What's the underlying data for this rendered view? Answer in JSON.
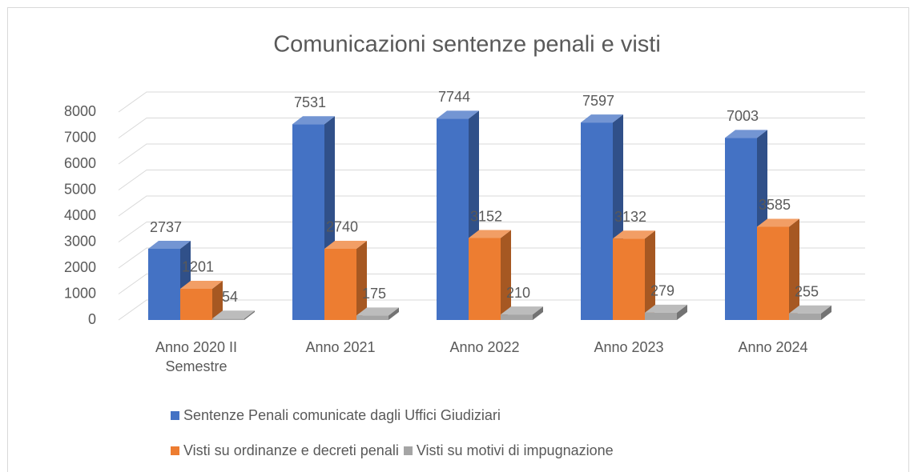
{
  "chart_data": {
    "type": "bar3d",
    "title": "Comunicazioni sentenze penali e visti",
    "categories": [
      "Anno 2020 II Semestre",
      "Anno 2021",
      "Anno 2022",
      "Anno 2023",
      "Anno 2024"
    ],
    "series": [
      {
        "name": "Sentenze Penali comunicate dagli Uffici Giudiziari",
        "color": "#4472c4",
        "values": [
          2737,
          7531,
          7744,
          7597,
          7003
        ]
      },
      {
        "name": "Visti su ordinanze e decreti penali",
        "color": "#ed7d31",
        "values": [
          1201,
          2740,
          3152,
          3132,
          3585
        ]
      },
      {
        "name": "Visti su motivi di impugnazione",
        "color": "#a5a5a5",
        "values": [
          54,
          175,
          210,
          279,
          255
        ]
      }
    ],
    "ylim": [
      0,
      8000
    ],
    "yticks": [
      0,
      1000,
      2000,
      3000,
      4000,
      5000,
      6000,
      7000,
      8000
    ],
    "grid": true,
    "legend": "bottom"
  }
}
